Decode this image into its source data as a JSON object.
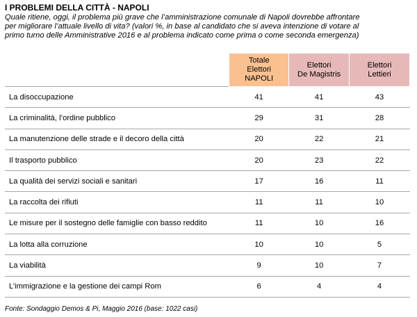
{
  "title": "I PROBLEMI DELLA CITTÀ - NAPOLI",
  "subtitle": "Quale ritiene, oggi, il problema più grave che l’amministrazione comunale di Napoli dovrebbe affrontare\nper migliorare l’attuale livello di vita? (valori %, in base al candidato che si aveva intenzione di votare al\nprimo turno delle Amministrative 2016 e al problema indicato come prima o come seconda emergenza)",
  "source": "Fonte: Sondaggio Demos & Pi, Maggio 2016 (base: 1022 casi)",
  "colors": {
    "header_total": "#fac090",
    "header_electors": "#e6b9b8",
    "rule": "#a6a6a6"
  },
  "chart_data": {
    "type": "table",
    "columns": [
      "Totale\nElettori\nNAPOLI",
      "Elettori\nDe Magistris",
      "Elettori\nLettieri"
    ],
    "rows": [
      {
        "label": "La disoccupazione",
        "values": [
          41,
          41,
          43
        ]
      },
      {
        "label": "La criminalità, l’ordine pubblico",
        "values": [
          29,
          31,
          28
        ]
      },
      {
        "label": "La manutenzione delle strade e il decoro della città",
        "values": [
          20,
          22,
          21
        ]
      },
      {
        "label": "Il trasporto pubblico",
        "values": [
          20,
          23,
          22
        ]
      },
      {
        "label": "La qualità dei servizi sociali e sanitari",
        "values": [
          17,
          16,
          11
        ]
      },
      {
        "label": "La raccolta dei rifiuti",
        "values": [
          11,
          11,
          10
        ]
      },
      {
        "label": "Le misure per il sostegno delle famiglie con basso reddito",
        "values": [
          11,
          10,
          16
        ]
      },
      {
        "label": "La lotta alla corruzione",
        "values": [
          10,
          10,
          5
        ]
      },
      {
        "label": "La viabilità",
        "values": [
          9,
          10,
          7
        ]
      },
      {
        "label": "L’immigrazione e la gestione dei campi Rom",
        "values": [
          6,
          4,
          4
        ]
      }
    ]
  }
}
